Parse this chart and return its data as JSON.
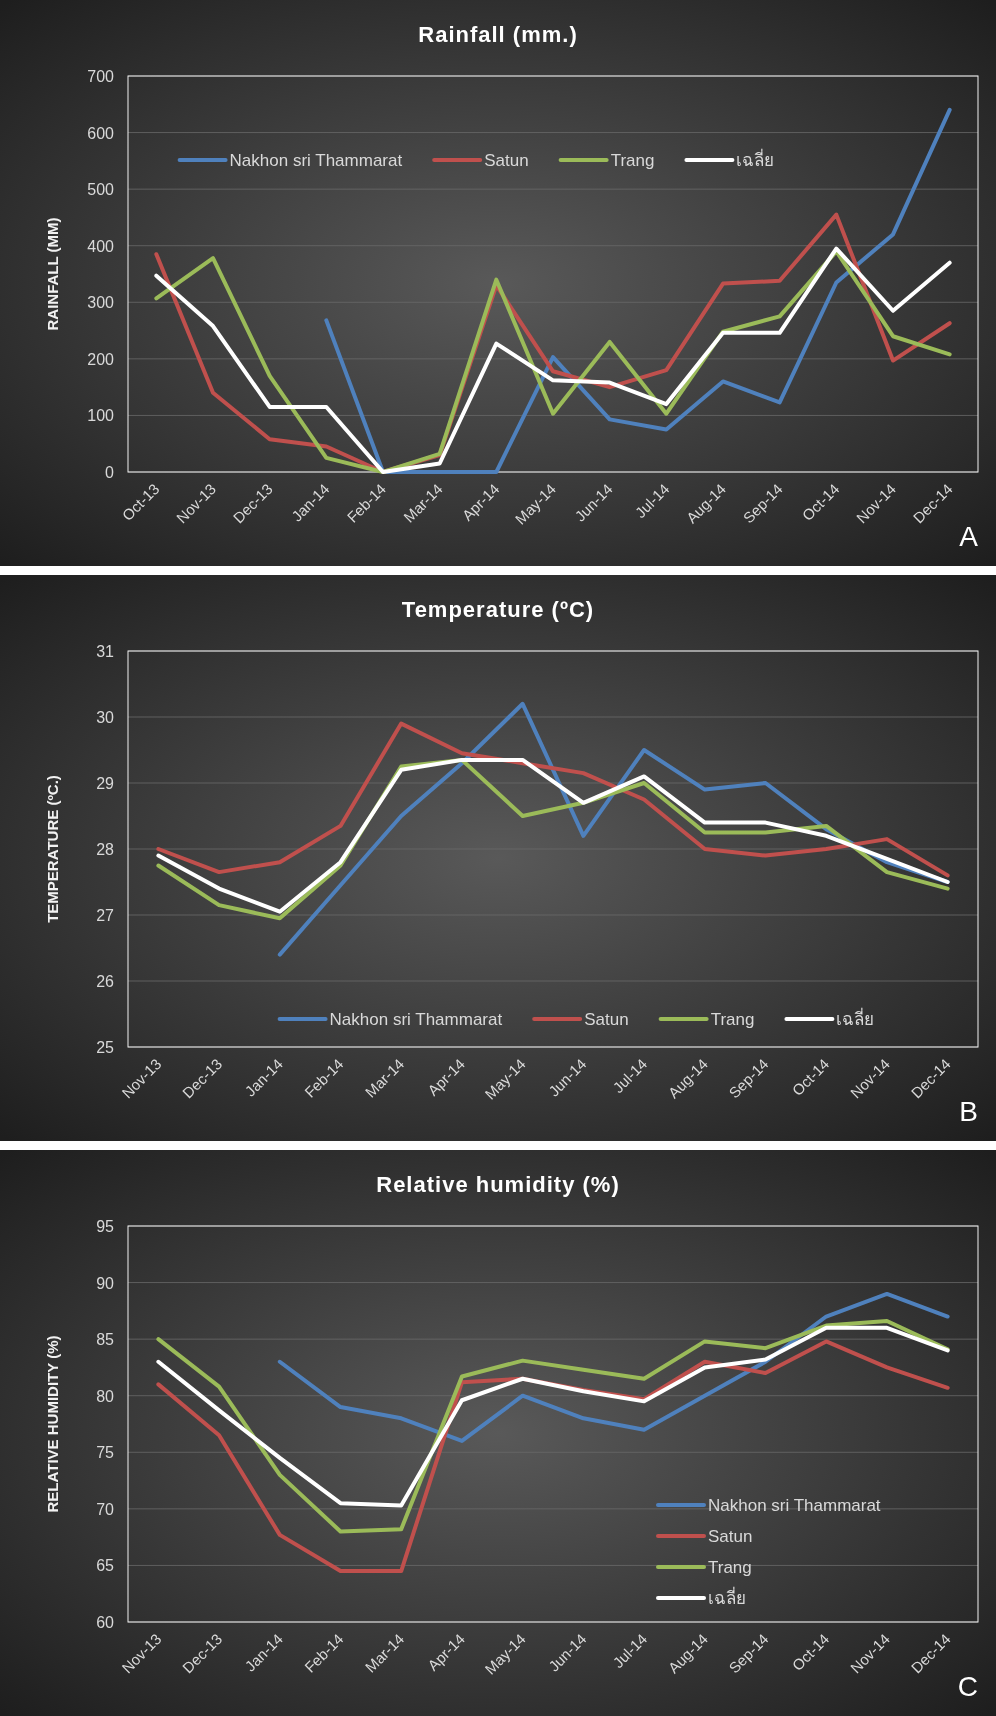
{
  "chart_data": [
    {
      "type": "line",
      "title": "Rainfall (mm.)",
      "ylabel": "RAINFALL (MM)",
      "categories": [
        "Oct-13",
        "Nov-13",
        "Dec-13",
        "Jan-14",
        "Feb-14",
        "Mar-14",
        "Apr-14",
        "May-14",
        "Jun-14",
        "Jul-14",
        "Aug-14",
        "Sep-14",
        "Oct-14",
        "Nov-14",
        "Dec-14"
      ],
      "ylim": [
        0,
        700
      ],
      "yticks": [
        0,
        100,
        200,
        300,
        400,
        500,
        600,
        700
      ],
      "grid": "y",
      "legend": "top",
      "line_style": "solid",
      "annotations": [
        "A"
      ],
      "series": [
        {
          "name": "Nakhon sri Thammarat",
          "color": "#4f81bd",
          "values": [
            null,
            null,
            null,
            268,
            0,
            0,
            0,
            203,
            93,
            75,
            160,
            123,
            335,
            420,
            640
          ]
        },
        {
          "name": "Satun",
          "color": "#c0504d",
          "values": [
            385,
            140,
            58,
            45,
            0,
            30,
            330,
            178,
            150,
            180,
            333,
            338,
            455,
            197,
            263
          ]
        },
        {
          "name": "Trang",
          "color": "#9bbb59",
          "values": [
            307,
            378,
            170,
            25,
            0,
            32,
            340,
            103,
            230,
            103,
            248,
            275,
            390,
            240,
            208
          ]
        },
        {
          "name": "เฉลี่ย",
          "color": "#ffffff",
          "values": [
            347,
            258,
            115,
            115,
            0,
            15,
            227,
            162,
            158,
            120,
            246,
            246,
            395,
            285,
            370
          ]
        }
      ]
    },
    {
      "type": "line",
      "title": "Temperature (ºC)",
      "ylabel": "TEMPERATURE (ºC.)",
      "categories": [
        "Nov-13",
        "Dec-13",
        "Jan-14",
        "Feb-14",
        "Mar-14",
        "Apr-14",
        "May-14",
        "Jun-14",
        "Jul-14",
        "Aug-14",
        "Sep-14",
        "Oct-14",
        "Nov-14",
        "Dec-14"
      ],
      "ylim": [
        25,
        31
      ],
      "yticks": [
        25,
        26,
        27,
        28,
        29,
        30,
        31
      ],
      "grid": "y",
      "legend": "bottom",
      "line_style": "solid",
      "annotations": [
        "B"
      ],
      "series": [
        {
          "name": "Nakhon sri Thammarat",
          "color": "#4f81bd",
          "values": [
            null,
            null,
            26.4,
            27.45,
            28.5,
            29.3,
            30.2,
            28.2,
            29.5,
            28.9,
            29.0,
            28.3,
            27.8,
            27.5
          ]
        },
        {
          "name": "Satun",
          "color": "#c0504d",
          "values": [
            28.0,
            27.65,
            27.8,
            28.35,
            29.9,
            29.45,
            29.3,
            29.15,
            28.75,
            28.0,
            27.9,
            28.0,
            28.15,
            27.6
          ]
        },
        {
          "name": "Trang",
          "color": "#9bbb59",
          "values": [
            27.75,
            27.15,
            26.95,
            27.75,
            29.25,
            29.35,
            28.5,
            28.7,
            29.0,
            28.25,
            28.25,
            28.35,
            27.65,
            27.4
          ]
        },
        {
          "name": "เฉลี่ย",
          "color": "#ffffff",
          "values": [
            27.9,
            27.4,
            27.05,
            27.8,
            29.2,
            29.35,
            29.35,
            28.7,
            29.1,
            28.4,
            28.4,
            28.2,
            27.85,
            27.5
          ]
        }
      ]
    },
    {
      "type": "line",
      "title": "Relative humidity (%)",
      "ylabel": "RELATIVE HUMIDITY (%)",
      "categories": [
        "Nov-13",
        "Dec-13",
        "Jan-14",
        "Feb-14",
        "Mar-14",
        "Apr-14",
        "May-14",
        "Jun-14",
        "Jul-14",
        "Aug-14",
        "Sep-14",
        "Oct-14",
        "Nov-14",
        "Dec-14"
      ],
      "ylim": [
        60,
        95
      ],
      "yticks": [
        60,
        65,
        70,
        75,
        80,
        85,
        90,
        95
      ],
      "grid": "y",
      "legend": "bottom right",
      "line_style": "solid",
      "annotations": [
        "C"
      ],
      "series": [
        {
          "name": "Nakhon sri Thammarat",
          "color": "#4f81bd",
          "values": [
            null,
            null,
            83,
            79,
            78,
            76,
            80,
            78,
            77,
            80,
            83,
            87,
            89,
            87
          ]
        },
        {
          "name": "Satun",
          "color": "#c0504d",
          "values": [
            81,
            76.5,
            67.7,
            64.5,
            64.5,
            81.2,
            81.5,
            80.5,
            79.7,
            83,
            82,
            84.8,
            82.5,
            80.7
          ]
        },
        {
          "name": "Trang",
          "color": "#9bbb59",
          "values": [
            85,
            80.8,
            73,
            68,
            68.2,
            81.7,
            83.1,
            82.3,
            81.5,
            84.8,
            84.2,
            86.2,
            86.6,
            84.1
          ]
        },
        {
          "name": "เฉลี่ย",
          "color": "#ffffff",
          "values": [
            83,
            78.7,
            74.5,
            70.5,
            70.3,
            79.6,
            81.5,
            80.4,
            79.5,
            82.5,
            83.2,
            86,
            86,
            84
          ]
        }
      ]
    }
  ]
}
